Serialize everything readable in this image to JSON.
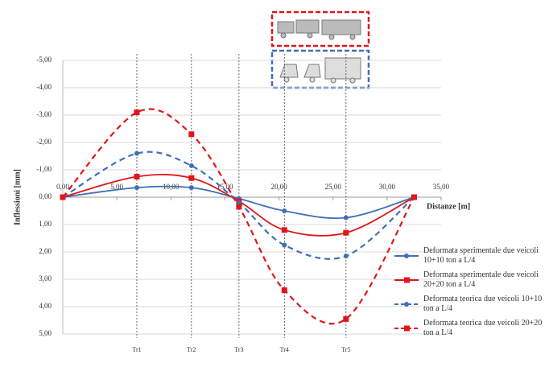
{
  "chart_data": {
    "type": "line",
    "y_label": "Inflessioni [mm]",
    "x_label": "Distanze [m]",
    "x": [
      0,
      6.85,
      11.9,
      16.3,
      20.5,
      26.2,
      32.5
    ],
    "xlim": [
      0,
      35
    ],
    "xticks": [
      {
        "value": 0,
        "label": "0,00"
      },
      {
        "value": 5,
        "label": "5,00"
      },
      {
        "value": 10,
        "label": "10,00"
      },
      {
        "value": 15,
        "label": "15,00"
      },
      {
        "value": 20,
        "label": "20,00"
      },
      {
        "value": 25,
        "label": "25,00"
      },
      {
        "value": 30,
        "label": "30,00"
      },
      {
        "value": 35,
        "label": "35,00"
      }
    ],
    "ylim": [
      -5,
      5
    ],
    "y_reversed": true,
    "yticks": [
      {
        "value": -5,
        "label": "-5,00"
      },
      {
        "value": -4,
        "label": "-4,00"
      },
      {
        "value": -3,
        "label": "-3,00"
      },
      {
        "value": -2,
        "label": "-2,00"
      },
      {
        "value": -1,
        "label": "-1,00"
      },
      {
        "value": 0,
        "label": "0,00"
      },
      {
        "value": 1,
        "label": "1,00"
      },
      {
        "value": 2,
        "label": "2,00"
      },
      {
        "value": 3,
        "label": "3,00"
      },
      {
        "value": 4,
        "label": "4,00"
      },
      {
        "value": 5,
        "label": "5,00"
      }
    ],
    "grid": true,
    "section_labels": [
      "Tr1",
      "Tr2",
      "Tr3",
      "Tr4",
      "Tr5"
    ],
    "series": [
      {
        "name": "Deformata sperimentale due veicoli 10+10 ton a L/4",
        "color": "#3f6fb8",
        "dashed": false,
        "marker": "circle",
        "values": [
          0,
          -0.35,
          -0.35,
          0.05,
          0.5,
          0.75,
          0
        ]
      },
      {
        "name": "Deformata sperimentale due veicoli 20+20 ton a L/4",
        "color": "#e0161b",
        "dashed": false,
        "marker": "square",
        "values": [
          0,
          -0.75,
          -0.7,
          0.15,
          1.2,
          1.3,
          0
        ]
      },
      {
        "name": "Deformata teorica due veicoli 10+10 ton a L/4",
        "color": "#3f6fb8",
        "dashed": true,
        "marker": "circle",
        "values": [
          0,
          -1.6,
          -1.15,
          0.2,
          1.75,
          2.15,
          0
        ]
      },
      {
        "name": "Deformata teorica due veicoli 20+20 ton a L/4",
        "color": "#e0161b",
        "dashed": true,
        "marker": "square",
        "values": [
          0,
          -3.1,
          -2.3,
          0.35,
          3.4,
          4.45,
          0
        ]
      }
    ]
  }
}
